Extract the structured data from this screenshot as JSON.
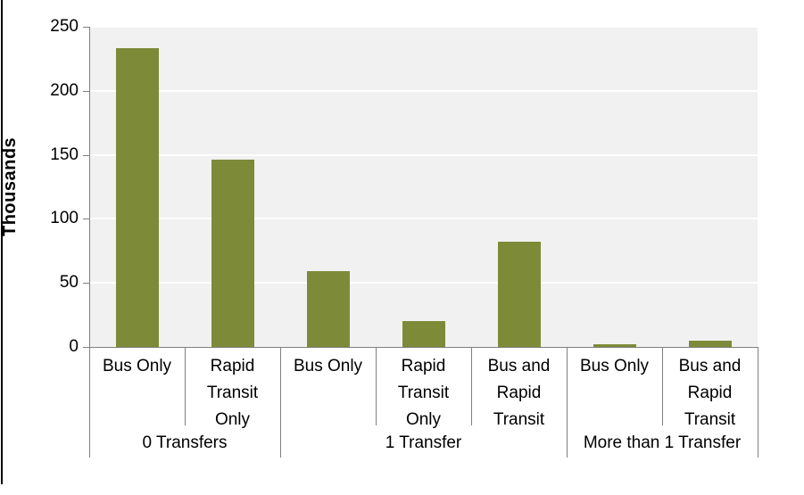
{
  "chart_data": {
    "type": "bar",
    "title": "",
    "ylabel": "Thousands",
    "xlabel": "",
    "ylim": [
      0,
      250
    ],
    "yticks": [
      0,
      50,
      100,
      150,
      200,
      250
    ],
    "grid": true,
    "legend": "none",
    "bar_color": "#7d8b38",
    "plot_bg": "#f1f1f1",
    "axis_color": "#808080",
    "groups": [
      {
        "label": "0 Transfers",
        "bars": [
          {
            "label": "Bus Only",
            "value": 233
          },
          {
            "label": "Rapid Transit Only",
            "value": 146
          }
        ]
      },
      {
        "label": "1 Transfer",
        "bars": [
          {
            "label": "Bus Only",
            "value": 59
          },
          {
            "label": "Rapid Transit Only",
            "value": 20
          },
          {
            "label": "Bus and Rapid Transit",
            "value": 82
          }
        ]
      },
      {
        "label": "More than 1 Transfer",
        "bars": [
          {
            "label": "Bus Only",
            "value": 2
          },
          {
            "label": "Bus and Rapid Transit",
            "value": 5
          }
        ]
      }
    ]
  }
}
